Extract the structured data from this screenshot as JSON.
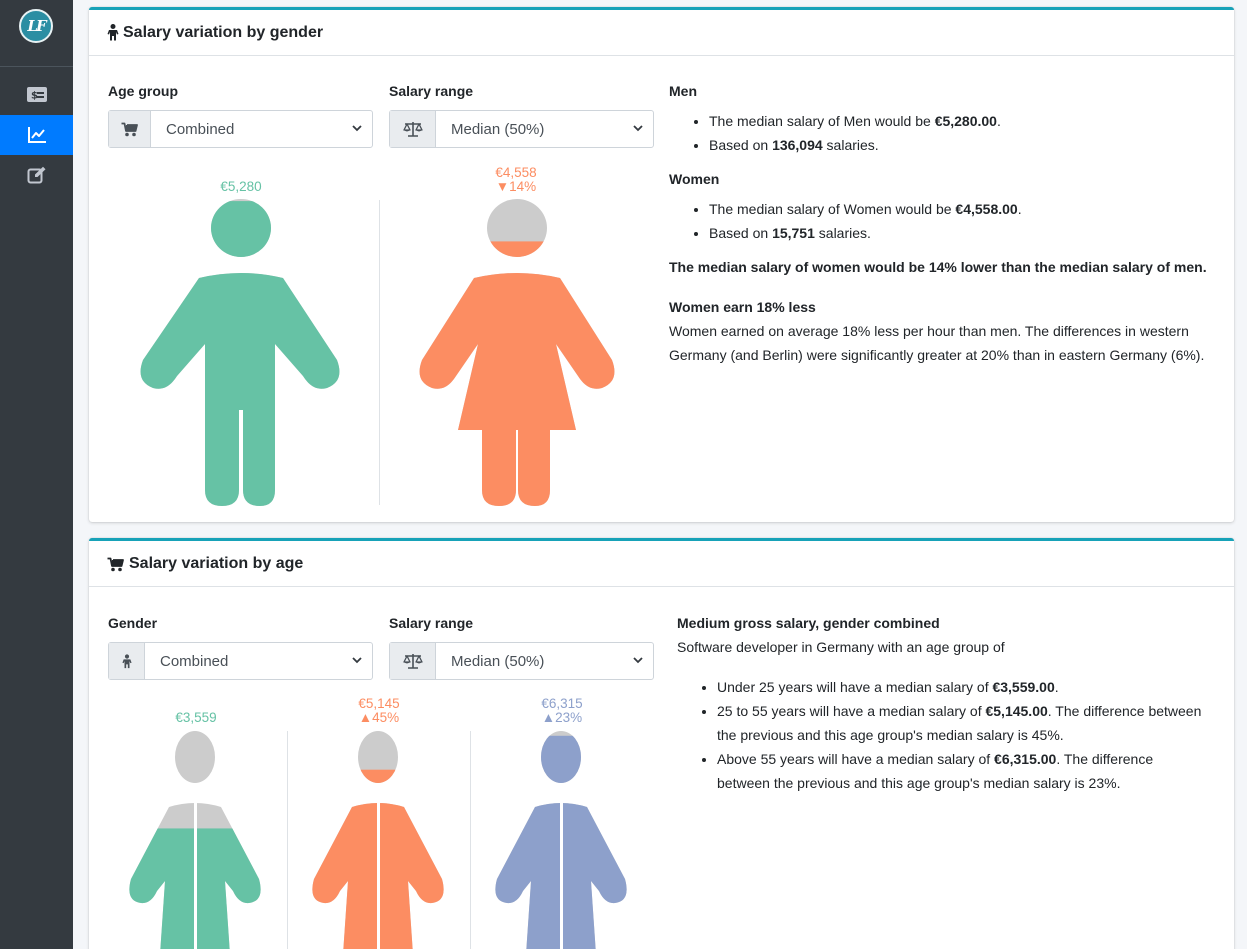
{
  "app": {
    "logo_text": "LF"
  },
  "sidebar": {
    "items": [
      {
        "name": "salary",
        "icon": "money-bill-icon",
        "active": false
      },
      {
        "name": "statistics",
        "icon": "chart-line-icon",
        "active": true
      },
      {
        "name": "edit",
        "icon": "edit-icon",
        "active": false
      }
    ]
  },
  "gender_card": {
    "title": "Salary variation by gender",
    "age_group": {
      "label": "Age group",
      "value": "Combined"
    },
    "salary_range": {
      "label": "Salary range",
      "value": "Median (50%)"
    },
    "figures": {
      "men": {
        "amount": "€5,280",
        "color": "#66c2a5",
        "fill": 0.99
      },
      "women": {
        "amount": "€4,558",
        "change": "▼14%",
        "color": "#fc8d62",
        "fill": 0.86
      }
    },
    "info": {
      "men_heading": "Men",
      "men_line1_pre": "The median salary of Men would be ",
      "men_line1_value": "€5,280.00",
      "men_line1_post": ".",
      "men_line2_pre": "Based on ",
      "men_line2_value": "136,094",
      "men_line2_post": " salaries.",
      "women_heading": "Women",
      "women_line1_pre": "The median salary of Women would be ",
      "women_line1_value": "€4,558.00",
      "women_line1_post": ".",
      "women_line2_pre": "Based on ",
      "women_line2_value": "15,751",
      "women_line2_post": " salaries.",
      "summary": "The median salary of women would be 14% lower than the median salary of men.",
      "note_heading": "Women earn 18% less",
      "note_text": "Women earned on average 18% less per hour than men. The differences in western Germany (and Berlin) were significantly greater at 20% than in eastern Germany (6%)."
    }
  },
  "age_card": {
    "title": "Salary variation by age",
    "gender": {
      "label": "Gender",
      "value": "Combined"
    },
    "salary_range": {
      "label": "Salary range",
      "value": "Median (50%)"
    },
    "figures": [
      {
        "amount": "€3,559",
        "change": "",
        "color": "#66c2a5",
        "fill": 0.56
      },
      {
        "amount": "€5,145",
        "change": "▲45%",
        "color": "#fc8d62",
        "fill": 0.82
      },
      {
        "amount": "€6,315",
        "change": "▲23%",
        "color": "#8da0cb",
        "fill": 0.97
      }
    ],
    "info": {
      "heading": "Medium gross salary, gender combined",
      "intro": "Software developer in Germany with an age group of",
      "b1_pre": "Under 25 years will have a median salary of ",
      "b1_value": "€3,559.00",
      "b1_post": ".",
      "b2_pre": "25 to 55 years will have a median salary of ",
      "b2_value": "€5,145.00",
      "b2_post": ". The difference between the previous and this age group's median salary is 45%.",
      "b3_pre": "Above 55 years will have a median salary of ",
      "b3_value": "€6,315.00",
      "b3_post": ". The difference between the previous and this age group's median salary is 23%."
    }
  }
}
